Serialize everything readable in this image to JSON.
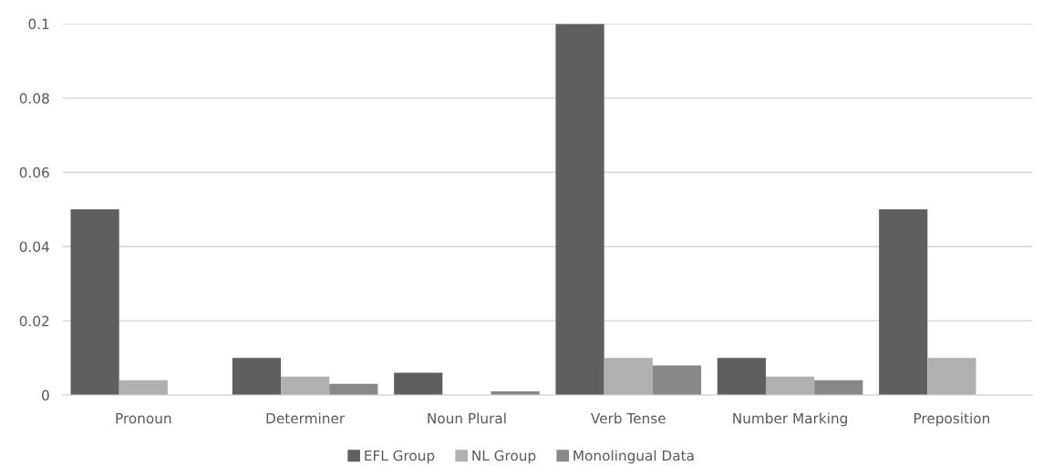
{
  "chart_data": {
    "type": "bar",
    "categories": [
      "Pronoun",
      "Determiner",
      "Noun Plural",
      "Verb Tense",
      "Number Marking",
      "Preposition"
    ],
    "series": [
      {
        "name": "EFL Group",
        "color": "#5f5f5f",
        "values": [
          0.05,
          0.01,
          0.006,
          0.1,
          0.01,
          0.05
        ]
      },
      {
        "name": "NL Group",
        "color": "#b0b0b0",
        "values": [
          0.004,
          0.005,
          0,
          0.01,
          0.005,
          0.01
        ]
      },
      {
        "name": "Monolingual Data",
        "color": "#888888",
        "values": [
          0,
          0.003,
          0.001,
          0.008,
          0.004,
          0
        ]
      }
    ],
    "ylim": [
      0,
      0.1
    ],
    "yticks": [
      0,
      0.02,
      0.04,
      0.06,
      0.08,
      0.1
    ],
    "grid": "y",
    "legend": "bottom"
  }
}
